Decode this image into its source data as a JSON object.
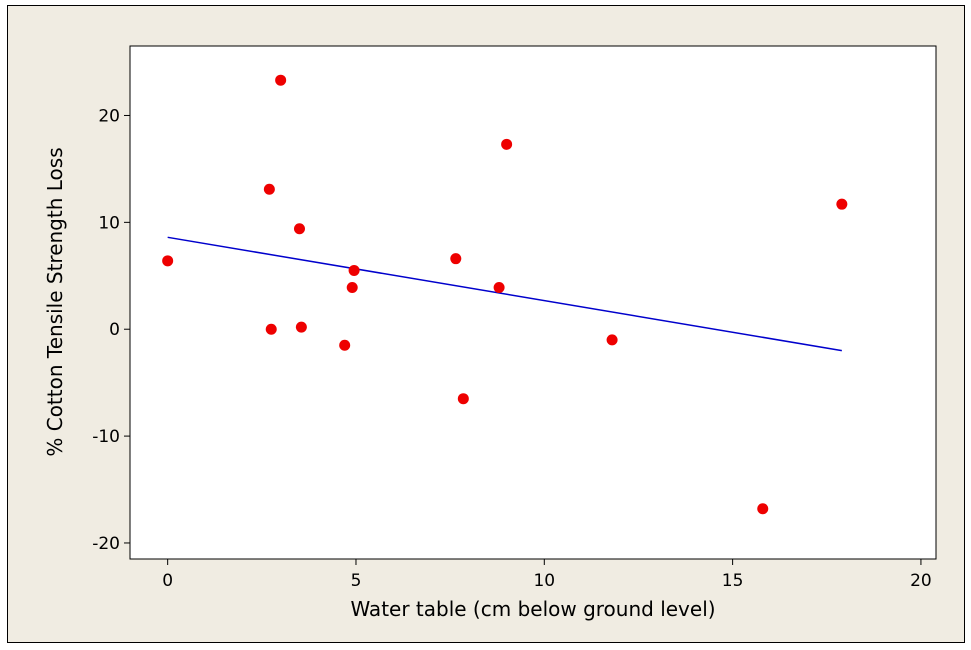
{
  "chart_data": {
    "type": "scatter",
    "title": "",
    "xlabel": "Water table (cm below ground level)",
    "ylabel": "% Cotton Tensile Strength Loss",
    "xlim": [
      -1,
      20.4
    ],
    "ylim": [
      -21.5,
      26.5
    ],
    "xticks": [
      0,
      5,
      10,
      15,
      20
    ],
    "yticks": [
      -20,
      -10,
      0,
      10,
      20
    ],
    "xtick_labels": [
      "0",
      "5",
      "10",
      "15",
      "20"
    ],
    "ytick_labels": [
      "-20",
      "-10",
      "0",
      "10",
      "20"
    ],
    "grid": false,
    "legend": "none",
    "series": [
      {
        "kind": "points",
        "color": "#ee0000",
        "points": [
          {
            "x": 0.0,
            "y": 6.4
          },
          {
            "x": 2.7,
            "y": 13.1
          },
          {
            "x": 2.75,
            "y": 0.0
          },
          {
            "x": 3.0,
            "y": 23.3
          },
          {
            "x": 3.5,
            "y": 9.4
          },
          {
            "x": 3.55,
            "y": 0.2
          },
          {
            "x": 4.7,
            "y": -1.5
          },
          {
            "x": 4.9,
            "y": 3.9
          },
          {
            "x": 4.95,
            "y": 5.5
          },
          {
            "x": 7.65,
            "y": 6.6
          },
          {
            "x": 7.85,
            "y": -6.5
          },
          {
            "x": 8.8,
            "y": 3.9
          },
          {
            "x": 9.0,
            "y": 17.3
          },
          {
            "x": 11.8,
            "y": -1.0
          },
          {
            "x": 15.8,
            "y": -16.8
          },
          {
            "x": 17.9,
            "y": 11.7
          }
        ]
      },
      {
        "kind": "fit-line",
        "color": "#0000cc",
        "points": [
          {
            "x": 0.0,
            "y": 8.6
          },
          {
            "x": 17.9,
            "y": -2.0
          }
        ]
      }
    ]
  }
}
